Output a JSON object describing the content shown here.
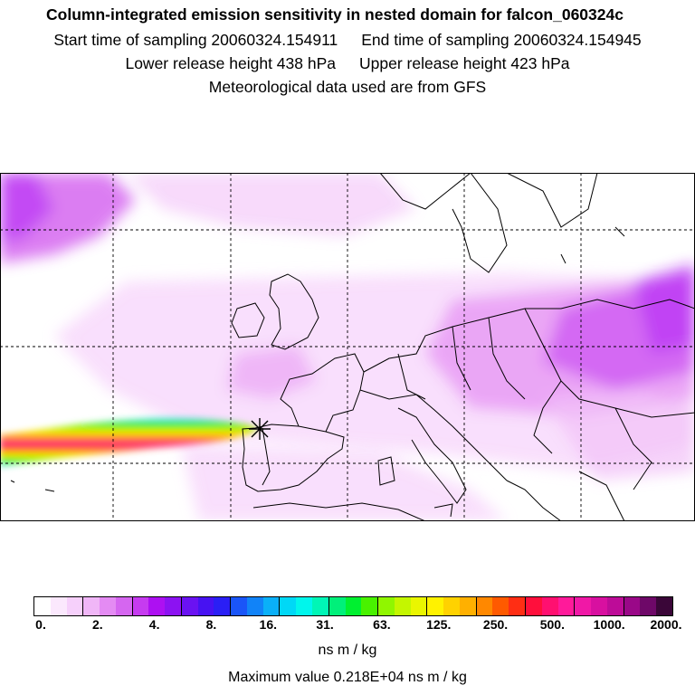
{
  "header": {
    "title": "Column-integrated emission sensitivity in nested domain for falcon_060324c",
    "start_label": "Start time of sampling 20060324.154911",
    "end_label": "End time of sampling 20060324.154945",
    "lower_label": "Lower release height  438 hPa",
    "upper_label": "Upper release height  423 hPa",
    "met_label": "Meteorological data used are from GFS"
  },
  "colorbar": {
    "ticks": [
      "0.",
      "2.",
      "4.",
      "8.",
      "16.",
      "31.",
      "63.",
      "125.",
      "250.",
      "500.",
      "1000.",
      "2000."
    ],
    "colors": [
      "#ffffff",
      "#fbe8fd",
      "#f6d0fb",
      "#f0b6f7",
      "#e48bf3",
      "#d566f0",
      "#c63bf0",
      "#ad10f2",
      "#8c12f2",
      "#6a12f2",
      "#4712f2",
      "#2a1ff5",
      "#1a55f8",
      "#1183f8",
      "#0ab0f8",
      "#00d8f6",
      "#00f6ec",
      "#00f6b6",
      "#00f07a",
      "#00f030",
      "#49f200",
      "#90f600",
      "#c4f600",
      "#eaf600",
      "#fff200",
      "#ffd200",
      "#ffb000",
      "#ff8800",
      "#ff5a00",
      "#ff2e14",
      "#ff0f3c",
      "#ff1070",
      "#ff1a9a",
      "#f018a6",
      "#d810a0",
      "#bd0c98",
      "#9a0888",
      "#6e0868",
      "#3a0638"
    ],
    "units": "ns m / kg",
    "max_value": "Maximum value  0.218E+04 ns m / kg"
  },
  "map": {
    "release_marker": "release-site-star"
  }
}
